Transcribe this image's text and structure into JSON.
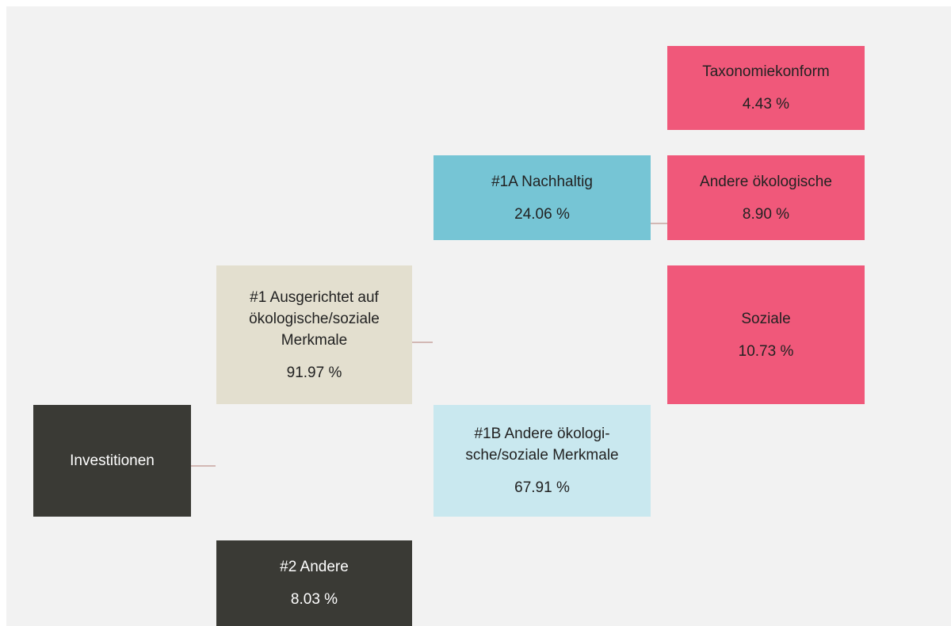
{
  "nodes": [
    {
      "label": [
        "Investitionen"
      ]
    },
    {
      "label": [
        "#1 Ausgerichtet auf",
        "ökologische/soziale",
        "Merkmale"
      ],
      "value": "91.97 %"
    },
    {
      "label": [
        "#2 Andere"
      ],
      "value": "8.03 %"
    },
    {
      "label": [
        "#1A Nachhaltig"
      ],
      "value": "24.06 %"
    },
    {
      "label": [
        "#1B Andere ökologi-",
        "sche/soziale Merkmale"
      ],
      "value": "67.91 %"
    },
    {
      "label": [
        "Taxonomiekonform"
      ],
      "value": "4.43 %"
    },
    {
      "label": [
        "Andere ökologische"
      ],
      "value": "8.90 %"
    },
    {
      "label": [
        "Soziale"
      ],
      "value": "10.73 %"
    }
  ]
}
